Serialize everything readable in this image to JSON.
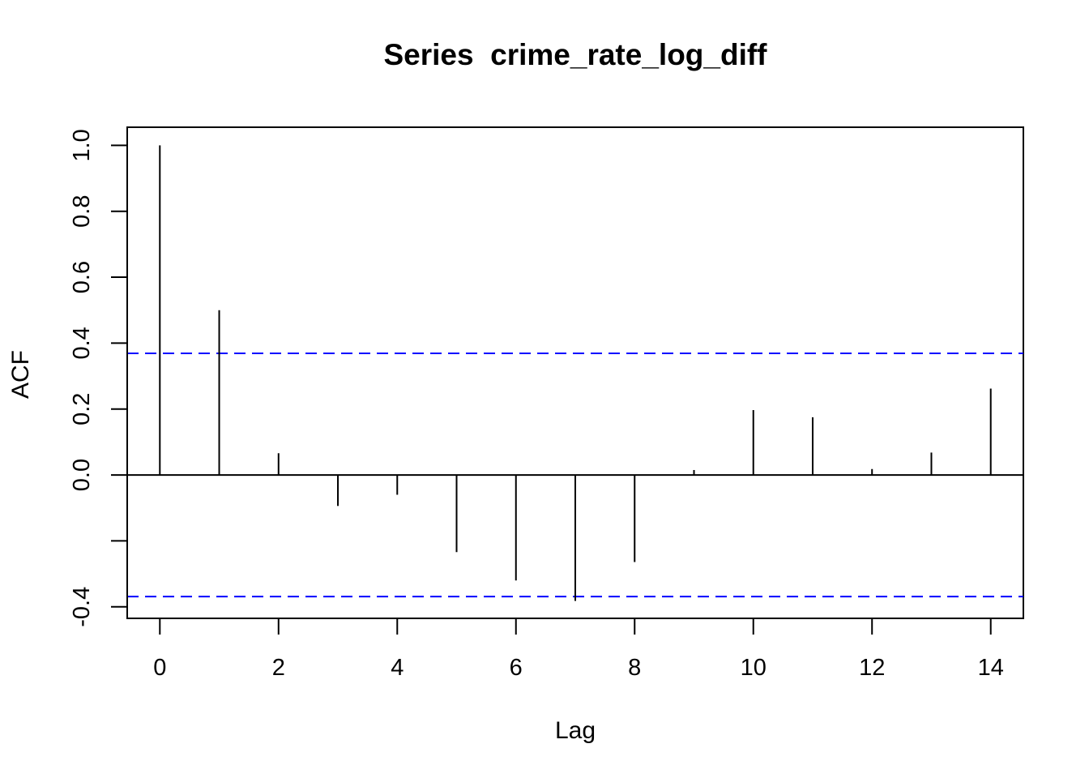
{
  "chart_data": {
    "type": "bar",
    "title": "Series  crime_rate_log_diff",
    "xlabel": "Lag",
    "ylabel": "ACF",
    "x": [
      0,
      1,
      2,
      3,
      4,
      5,
      6,
      7,
      8,
      9,
      10,
      11,
      12,
      13,
      14
    ],
    "values": [
      1.0,
      0.5,
      0.066,
      -0.094,
      -0.06,
      -0.234,
      -0.32,
      -0.382,
      -0.264,
      0.015,
      0.197,
      0.175,
      0.018,
      0.068,
      0.262
    ],
    "confidence_bound": 0.369,
    "xlim": [
      -0.55,
      14.55
    ],
    "ylim": [
      -0.435,
      1.055
    ],
    "x_ticks": [
      0,
      2,
      4,
      6,
      8,
      10,
      12,
      14
    ],
    "y_ticks": [
      -0.4,
      -0.2,
      0.0,
      0.2,
      0.4,
      0.6,
      0.8,
      1.0
    ],
    "y_tick_labels": [
      "-0.4",
      "",
      "0.0",
      "0.2",
      "0.4",
      "0.6",
      "0.8",
      "1.0"
    ],
    "grid": false,
    "colors": {
      "spikes": "#000000",
      "confidence": "#0000ff",
      "axes": "#000000"
    }
  }
}
